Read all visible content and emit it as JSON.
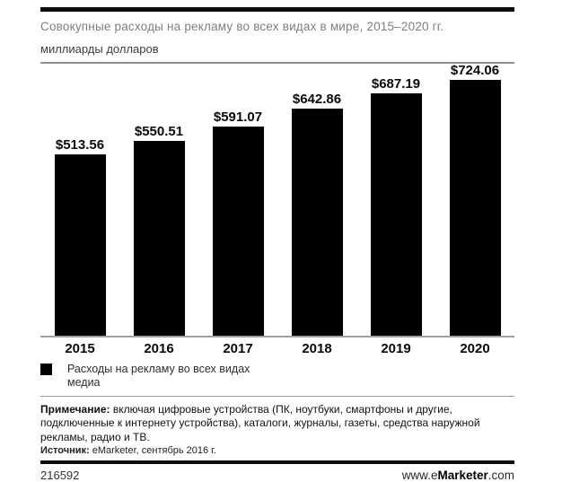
{
  "header": {
    "title": "Совокупные расходы на рекламу во всех видах в мире, 2015–2020 гг.",
    "subtitle": "миллиарды долларов"
  },
  "chart_data": {
    "type": "bar",
    "title": "Совокупные расходы на рекламу во всех видах в мире, 2015–2020 гг.",
    "ylabel": "миллиарды долларов",
    "xlabel": "",
    "categories": [
      "2015",
      "2016",
      "2017",
      "2018",
      "2019",
      "2020"
    ],
    "values": [
      513.56,
      550.51,
      591.07,
      642.86,
      687.19,
      724.06
    ],
    "value_labels": [
      "$513.56",
      "$550.51",
      "$591.07",
      "$642.86",
      "$687.19",
      "$724.06"
    ],
    "ylim": [
      0,
      760
    ],
    "grid": false,
    "bar_color": "#000000",
    "legend_position": "bottom-left",
    "legend": [
      "Расходы на рекламу во всех видах медиа"
    ]
  },
  "legend": {
    "swatch_color": "#000000",
    "label": "Расходы на рекламу во всех видах медиа"
  },
  "footnotes": {
    "note_label": "Примечание:",
    "note_text": " включая цифровые устройства (ПК, ноутбуки, смартфоны и другие, подключенные к интернету устройства), каталоги, журналы, газеты, средства наружной рекламы, радио и ТВ.",
    "source_label": "Источник:",
    "source_text": " eMarketer, сентябрь 2016 г."
  },
  "footer": {
    "chart_id": "216592",
    "website_prefix": "www.e",
    "website_bold": "Marketer",
    "website_suffix": ".com"
  }
}
